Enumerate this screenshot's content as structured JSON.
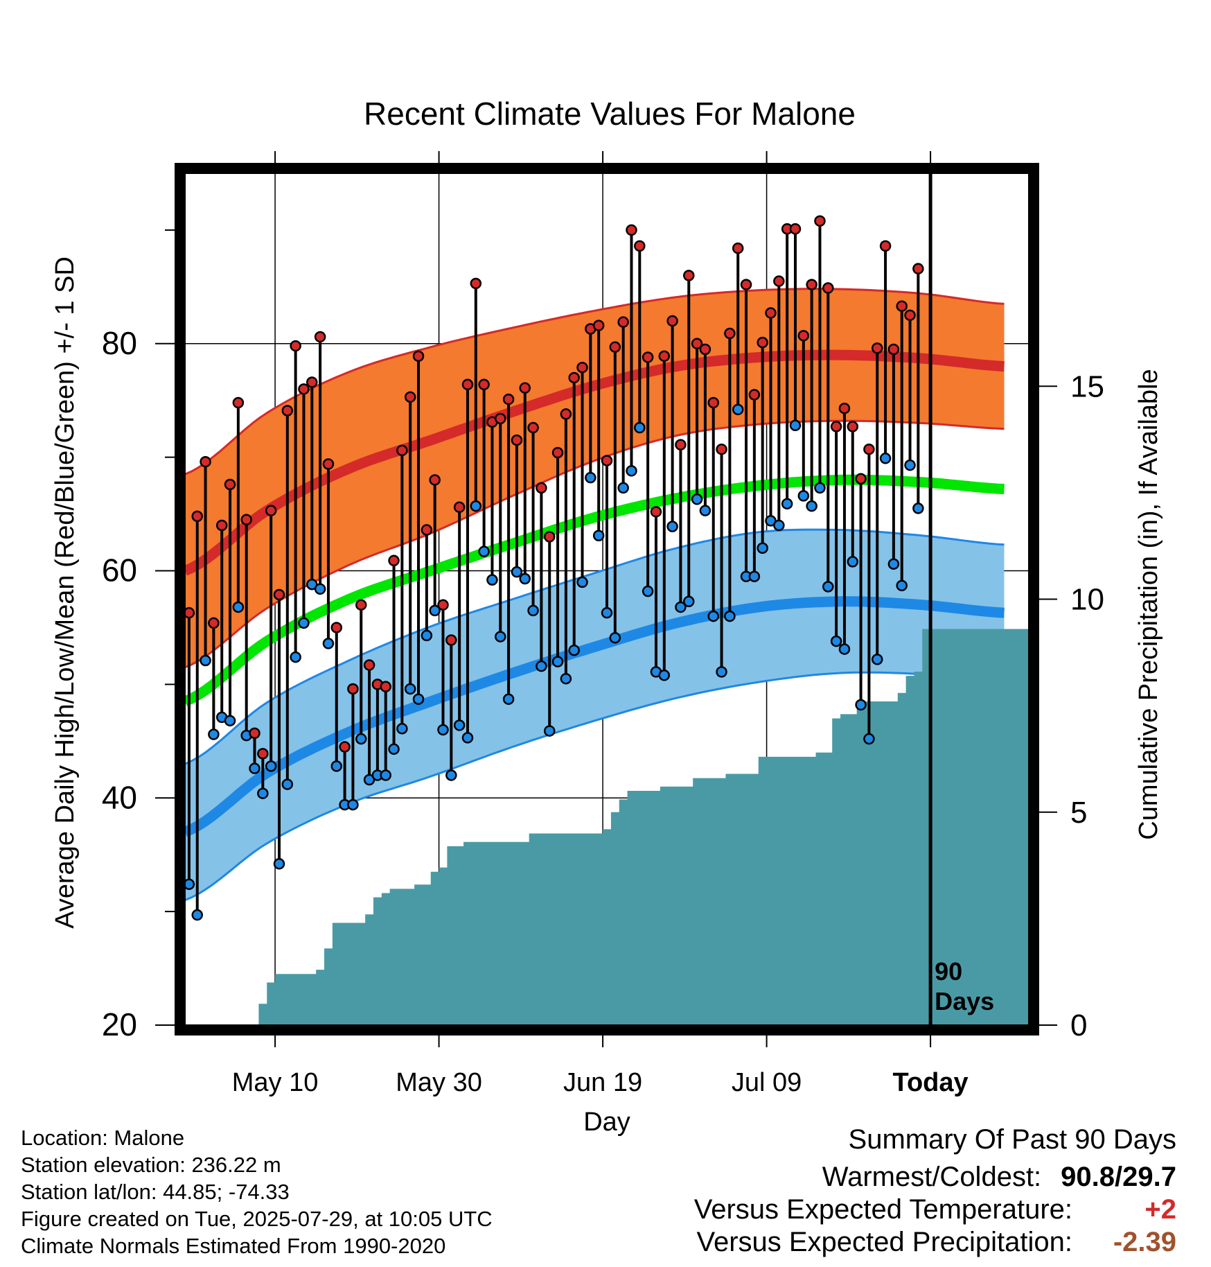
{
  "title": "Recent Climate Values For Malone",
  "info": {
    "location": "Location: Malone",
    "elevation": "Station elevation: 236.22 m",
    "latlon": "Station lat/lon: 44.85; -74.33",
    "created": "Figure created on Tue, 2025-07-29, at 10:05 UTC",
    "normals": "Climate Normals Estimated From 1990-2020"
  },
  "summary": {
    "title": "Summary Of Past 90 Days",
    "warmest_label": "Warmest/Coldest:",
    "warmest_value": "90.8/29.7",
    "temp_label": "Versus Expected Temperature:",
    "temp_value": "+2",
    "precip_label": "Versus Expected Precipitation:",
    "precip_value": "-2.39",
    "colors": {
      "temp": "#d42a2a",
      "precip": "#a0522d"
    }
  },
  "chart_data": {
    "type": "line",
    "title": "Recent Climate Values For Malone",
    "xlabel": "Day",
    "ylabel": "Average Daily High/Low/Mean (Red/Blue/Green) +/- 1 SD",
    "y2label": "Cumulative Precipitation (in), If Available",
    "x_start": "2025-04-29",
    "x_end": "2025-08-10",
    "ylim": [
      20,
      95
    ],
    "y_ticks": [
      20,
      40,
      60,
      80
    ],
    "y2lim": [
      0,
      20
    ],
    "y2_ticks": [
      0,
      5,
      10,
      15
    ],
    "x_ticks": [
      {
        "date": "2025-05-10",
        "label": "May 10"
      },
      {
        "date": "2025-05-30",
        "label": "May 30"
      },
      {
        "date": "2025-06-19",
        "label": "Jun 19"
      },
      {
        "date": "2025-07-09",
        "label": "Jul 09"
      },
      {
        "date": "2025-07-29",
        "label": "Today"
      }
    ],
    "today": "2025-07-29",
    "today_label_line1": "90",
    "today_label_line2": "Days",
    "grid": true,
    "colors": {
      "high_band": "#f37a2e",
      "high_band_edge": "#d42a2a",
      "normal_high": "#d42a2a",
      "low_band": "#85c2e8",
      "low_band_edge": "#1e88e5",
      "normal_low": "#1e88e5",
      "normal_mean": "#00e600",
      "precip": "#4a9aa5",
      "high_point": "#d42a2a",
      "low_point": "#1e88e5"
    },
    "normals": {
      "dates": [
        "2025-04-29",
        "2025-05-09",
        "2025-05-19",
        "2025-05-29",
        "2025-06-08",
        "2025-06-18",
        "2025-06-28",
        "2025-07-08",
        "2025-07-18",
        "2025-07-28",
        "2025-08-07"
      ],
      "high": [
        60.0,
        65.3,
        69.0,
        71.5,
        74.0,
        76.3,
        78.0,
        78.8,
        79.0,
        78.7,
        78.0
      ],
      "high_sd": [
        8.5,
        8.6,
        8.5,
        8.2,
        7.4,
        6.6,
        6.1,
        5.9,
        5.8,
        5.7,
        5.5
      ],
      "mean": [
        48.5,
        53.8,
        57.5,
        60.0,
        62.4,
        64.7,
        66.4,
        67.5,
        68.0,
        67.8,
        67.2
      ],
      "low": [
        37.0,
        42.2,
        45.8,
        48.5,
        51.0,
        53.3,
        55.4,
        56.8,
        57.3,
        57.0,
        56.3
      ],
      "low_sd": [
        6.0,
        6.2,
        6.3,
        6.6,
        6.5,
        6.5,
        6.6,
        6.6,
        6.3,
        6.1,
        6.0
      ]
    },
    "daily": {
      "dates": [
        "2025-04-30",
        "2025-05-01",
        "2025-05-02",
        "2025-05-03",
        "2025-05-04",
        "2025-05-05",
        "2025-05-06",
        "2025-05-07",
        "2025-05-08",
        "2025-05-09",
        "2025-05-10",
        "2025-05-11",
        "2025-05-12",
        "2025-05-13",
        "2025-05-14",
        "2025-05-15",
        "2025-05-16",
        "2025-05-17",
        "2025-05-18",
        "2025-05-19",
        "2025-05-20",
        "2025-05-21",
        "2025-05-22",
        "2025-05-23",
        "2025-05-24",
        "2025-05-25",
        "2025-05-26",
        "2025-05-27",
        "2025-05-28",
        "2025-05-29",
        "2025-05-30",
        "2025-05-31",
        "2025-06-01",
        "2025-06-02",
        "2025-06-03",
        "2025-06-04",
        "2025-06-05",
        "2025-06-06",
        "2025-06-07",
        "2025-06-08",
        "2025-06-09",
        "2025-06-10",
        "2025-06-11",
        "2025-06-12",
        "2025-06-13",
        "2025-06-14",
        "2025-06-15",
        "2025-06-16",
        "2025-06-17",
        "2025-06-18",
        "2025-06-19",
        "2025-06-20",
        "2025-06-21",
        "2025-06-22",
        "2025-06-23",
        "2025-06-24",
        "2025-06-25",
        "2025-06-26",
        "2025-06-27",
        "2025-06-28",
        "2025-06-29",
        "2025-06-30",
        "2025-07-01",
        "2025-07-02",
        "2025-07-03",
        "2025-07-04",
        "2025-07-05",
        "2025-07-06",
        "2025-07-07",
        "2025-07-08",
        "2025-07-09",
        "2025-07-10",
        "2025-07-11",
        "2025-07-12",
        "2025-07-13",
        "2025-07-14",
        "2025-07-15",
        "2025-07-16",
        "2025-07-17",
        "2025-07-18",
        "2025-07-19",
        "2025-07-20",
        "2025-07-21",
        "2025-07-22",
        "2025-07-23",
        "2025-07-24",
        "2025-07-25",
        "2025-07-26",
        "2025-07-27",
        "2025-07-28"
      ],
      "high": [
        56.3,
        64.8,
        69.6,
        55.4,
        64.0,
        67.6,
        74.8,
        64.5,
        45.7,
        43.9,
        65.3,
        57.9,
        74.1,
        79.8,
        76.0,
        76.6,
        80.6,
        69.4,
        55.0,
        44.5,
        49.6,
        57.0,
        51.7,
        50.0,
        49.8,
        60.9,
        70.6,
        75.3,
        78.9,
        63.6,
        68.0,
        57.0,
        53.9,
        65.6,
        76.4,
        85.3,
        76.4,
        73.1,
        73.4,
        75.1,
        71.5,
        76.1,
        72.6,
        67.3,
        63.0,
        70.4,
        73.8,
        77.0,
        77.9,
        81.3,
        81.6,
        69.7,
        79.7,
        81.9,
        90.0,
        88.6,
        78.8,
        65.2,
        78.9,
        82.0,
        71.1,
        86.0,
        80.0,
        79.5,
        74.8,
        70.7,
        80.9,
        88.4,
        85.2,
        75.5,
        80.1,
        82.7,
        85.5,
        90.1,
        90.1,
        80.7,
        85.2,
        90.8,
        84.9,
        72.7,
        74.3,
        72.7,
        68.1,
        70.7,
        79.6,
        88.6,
        79.5,
        83.3,
        82.5,
        86.6
      ],
      "low": [
        32.4,
        29.7,
        52.1,
        45.6,
        47.1,
        46.8,
        56.8,
        45.5,
        42.6,
        40.4,
        42.8,
        34.2,
        41.2,
        52.4,
        55.4,
        58.8,
        58.4,
        53.6,
        42.8,
        39.4,
        39.4,
        45.2,
        41.6,
        42.0,
        42.0,
        44.3,
        46.1,
        49.6,
        48.7,
        54.3,
        56.5,
        46.0,
        42.0,
        46.4,
        45.3,
        65.7,
        61.7,
        59.2,
        54.2,
        48.7,
        59.9,
        59.3,
        56.5,
        51.6,
        45.9,
        52.0,
        50.5,
        53.0,
        59.0,
        68.2,
        63.1,
        56.3,
        54.1,
        67.3,
        68.8,
        72.6,
        58.2,
        51.1,
        50.8,
        63.9,
        56.8,
        57.3,
        66.3,
        65.3,
        56.0,
        51.1,
        56.0,
        74.2,
        59.5,
        59.5,
        62.0,
        64.4,
        64.0,
        65.9,
        72.8,
        66.6,
        65.7,
        67.3,
        58.6,
        53.8,
        53.1,
        60.8,
        48.2,
        45.2,
        52.2,
        69.9,
        60.6,
        58.7,
        69.3,
        65.5
      ]
    },
    "precip_cumulative": {
      "dates": [
        "2025-04-29",
        "2025-05-07",
        "2025-05-08",
        "2025-05-09",
        "2025-05-10",
        "2025-05-11",
        "2025-05-12",
        "2025-05-13",
        "2025-05-14",
        "2025-05-15",
        "2025-05-16",
        "2025-05-17",
        "2025-05-18",
        "2025-05-19",
        "2025-05-20",
        "2025-05-21",
        "2025-05-22",
        "2025-05-23",
        "2025-05-24",
        "2025-05-25",
        "2025-05-26",
        "2025-05-27",
        "2025-05-28",
        "2025-05-29",
        "2025-05-30",
        "2025-05-31",
        "2025-06-01",
        "2025-06-02",
        "2025-06-10",
        "2025-06-11",
        "2025-06-18",
        "2025-06-19",
        "2025-06-20",
        "2025-06-21",
        "2025-06-22",
        "2025-06-25",
        "2025-06-26",
        "2025-06-29",
        "2025-06-30",
        "2025-07-03",
        "2025-07-04",
        "2025-07-07",
        "2025-07-08",
        "2025-07-11",
        "2025-07-15",
        "2025-07-16",
        "2025-07-17",
        "2025-07-18",
        "2025-07-19",
        "2025-07-20",
        "2025-07-21",
        "2025-07-22",
        "2025-07-23",
        "2025-07-24",
        "2025-07-25",
        "2025-07-26",
        "2025-07-27",
        "2025-07-28",
        "2025-08-07"
      ],
      "values": [
        0.0,
        0.0,
        0.5,
        1.0,
        1.2,
        1.2,
        1.2,
        1.2,
        1.2,
        1.3,
        1.8,
        2.4,
        2.4,
        2.4,
        2.4,
        2.6,
        3.0,
        3.1,
        3.2,
        3.2,
        3.2,
        3.3,
        3.3,
        3.6,
        3.7,
        4.2,
        4.2,
        4.3,
        4.5,
        4.5,
        4.5,
        4.6,
        5.0,
        5.3,
        5.5,
        5.5,
        5.6,
        5.6,
        5.8,
        5.8,
        5.9,
        5.9,
        6.3,
        6.3,
        6.4,
        6.4,
        7.2,
        7.3,
        7.3,
        7.5,
        7.6,
        7.6,
        7.6,
        7.6,
        7.8,
        8.2,
        8.3,
        9.3,
        9.3
      ]
    }
  }
}
